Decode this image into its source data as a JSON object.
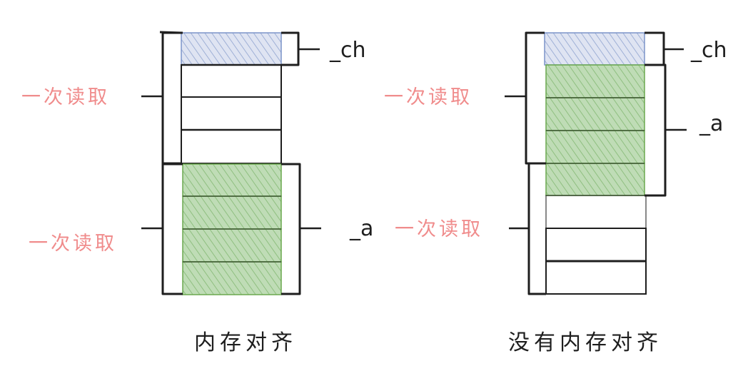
{
  "diagram": {
    "colors": {
      "stroke": "#1e1e1e",
      "read_label": "#f08c8c",
      "blue_fill": "#d0d7ea",
      "blue_stroke": "#7b94c9",
      "green_fill": "#b9d7b0",
      "green_stroke": "#6aa84f"
    },
    "aligned": {
      "caption": "内存对齐",
      "ch_label": "_ch",
      "a_label": "_a",
      "read_label_1": "一次读取",
      "read_label_2": "一次读取"
    },
    "unaligned": {
      "caption": "没有内存对齐",
      "ch_label": "_ch",
      "a_label": "_a",
      "read_label_1": "一次读取",
      "read_label_2": "一次读取"
    }
  }
}
